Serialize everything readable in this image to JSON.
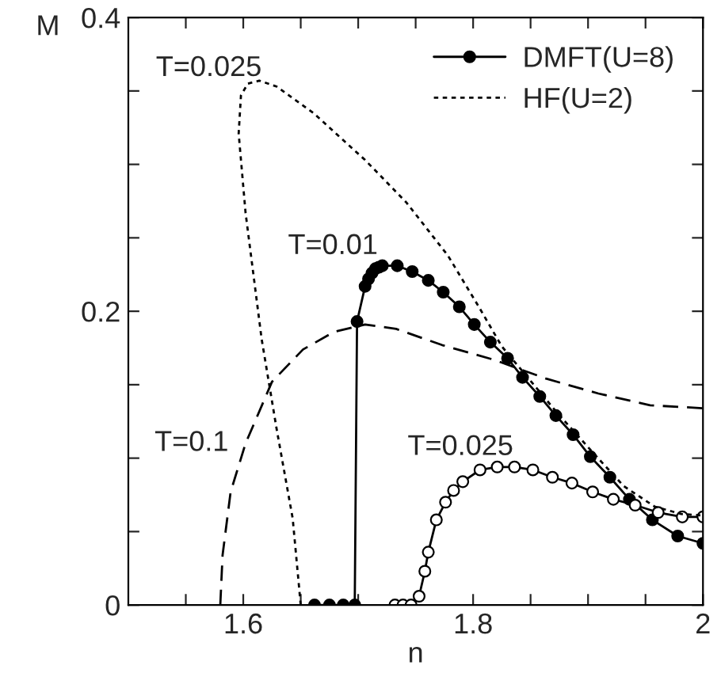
{
  "chart_data": {
    "type": "line",
    "xlabel": "n",
    "ylabel": "M",
    "xlim": [
      1.5,
      2.0
    ],
    "ylim": [
      0,
      0.4
    ],
    "xticks": [
      {
        "value": 1.55,
        "label": null
      },
      1.6,
      {
        "value": 1.65,
        "label": null
      },
      {
        "value": 1.7,
        "label": null
      },
      {
        "value": 1.75,
        "label": null
      },
      1.8,
      {
        "value": 1.85,
        "label": null
      },
      {
        "value": 1.9,
        "label": null
      },
      {
        "value": 1.95,
        "label": null
      },
      2
    ],
    "yticks": [
      0,
      {
        "value": 0.05,
        "label": null
      },
      {
        "value": 0.1,
        "label": null
      },
      {
        "value": 0.15,
        "label": null
      },
      0.2,
      {
        "value": 0.25,
        "label": null
      },
      {
        "value": 0.3,
        "label": null
      },
      {
        "value": 0.35,
        "label": null
      },
      0.4
    ],
    "grid": false,
    "legend": "top right",
    "series": [
      {
        "name": "DMFT(U=8)",
        "color": "#000000",
        "marker": "circle",
        "line_style": "solid",
        "x": [
          1.662,
          1.675,
          1.687,
          1.697,
          1.699,
          1.706,
          1.709,
          1.712,
          1.715,
          1.718,
          1.721,
          1.734,
          1.747,
          1.761,
          1.774,
          1.788,
          1.801,
          1.815,
          1.83,
          1.843,
          1.858,
          1.872,
          1.887,
          1.902,
          1.919,
          1.936,
          1.956,
          1.978,
          2.0
        ],
        "values": [
          0,
          0,
          0,
          0,
          0.193,
          0.217,
          0.222,
          0.226,
          0.229,
          0.23,
          0.231,
          0.231,
          0.227,
          0.221,
          0.213,
          0.203,
          0.191,
          0.179,
          0.168,
          0.155,
          0.142,
          0.129,
          0.116,
          0.101,
          0.087,
          0.072,
          0.058,
          0.047,
          0.042
        ]
      },
      {
        "color": "#000000",
        "marker": "circle",
        "line_style": "solid",
        "x": [
          1.732,
          1.739,
          1.746,
          1.753,
          1.758,
          1.761,
          1.768,
          1.776,
          1.783,
          1.791,
          1.806,
          1.821,
          1.836,
          1.852,
          1.869,
          1.886,
          1.904,
          1.922,
          1.941,
          1.961,
          1.982,
          2.0
        ],
        "values": [
          0,
          0,
          0,
          0.006,
          0.023,
          0.036,
          0.058,
          0.07,
          0.078,
          0.084,
          0.092,
          0.094,
          0.094,
          0.092,
          0.087,
          0.083,
          0.077,
          0.072,
          0.068,
          0.063,
          0.06,
          0.06
        ]
      },
      {
        "name": "HF(U=2)",
        "color": "#000000",
        "marker": "none",
        "line_style": "dotted",
        "x": [
          1.65,
          1.643,
          1.629,
          1.616,
          1.602,
          1.596,
          1.598,
          1.604,
          1.614,
          1.629,
          1.661,
          1.706,
          1.742,
          1.778,
          1.805,
          1.825,
          1.841,
          1.873,
          1.904,
          1.931,
          1.958,
          1.981,
          2.0
        ],
        "values": [
          0,
          0.059,
          0.12,
          0.181,
          0.267,
          0.321,
          0.347,
          0.355,
          0.357,
          0.353,
          0.335,
          0.303,
          0.274,
          0.238,
          0.203,
          0.176,
          0.161,
          0.131,
          0.104,
          0.081,
          0.067,
          0.062,
          0.061
        ]
      },
      {
        "color": "#000000",
        "marker": "none",
        "line_style": "dashed",
        "x": [
          1.58,
          1.582,
          1.589,
          1.602,
          1.625,
          1.652,
          1.679,
          1.706,
          1.733,
          1.773,
          1.818,
          1.864,
          1.909,
          1.954,
          2.0
        ],
        "values": [
          0,
          0.034,
          0.077,
          0.11,
          0.152,
          0.174,
          0.186,
          0.191,
          0.188,
          0.177,
          0.167,
          0.154,
          0.144,
          0.136,
          0.134
        ]
      }
    ],
    "annotations": [
      "T=0.025",
      "T=0.01",
      "T=0.1",
      "T=0.025"
    ]
  }
}
